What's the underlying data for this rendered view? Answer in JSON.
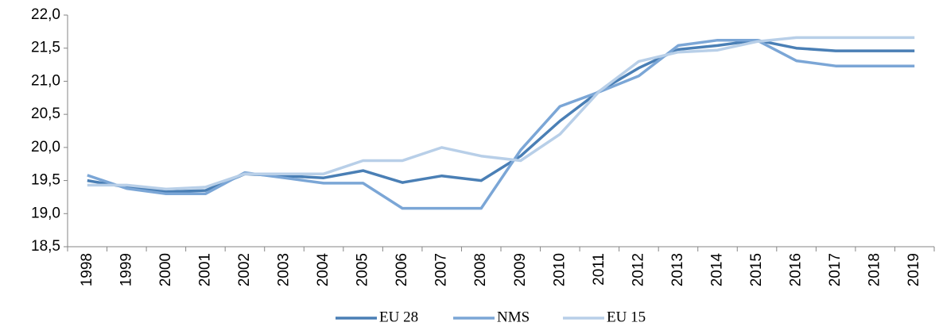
{
  "chart_data": {
    "type": "line",
    "categories": [
      "1998",
      "1999",
      "2000",
      "2001",
      "2002",
      "2003",
      "2004",
      "2005",
      "2006",
      "2007",
      "2008",
      "2009",
      "2010",
      "2011",
      "2012",
      "2013",
      "2014",
      "2015",
      "2016",
      "2017",
      "2018",
      "2019"
    ],
    "series": [
      {
        "name": "EU 28",
        "color": "#4a7fb5",
        "values": [
          19.5,
          19.4,
          19.33,
          19.35,
          19.6,
          19.57,
          19.54,
          19.65,
          19.47,
          19.57,
          19.5,
          19.87,
          20.4,
          20.85,
          21.2,
          21.48,
          21.54,
          21.62,
          21.5,
          21.46,
          21.46,
          21.46
        ]
      },
      {
        "name": "NMS",
        "color": "#7ba6d6",
        "values": [
          19.58,
          19.38,
          19.3,
          19.3,
          19.62,
          19.54,
          19.46,
          19.46,
          19.08,
          19.08,
          19.08,
          19.96,
          20.62,
          20.84,
          21.08,
          21.54,
          21.62,
          21.62,
          21.31,
          21.23,
          21.23,
          21.23
        ]
      },
      {
        "name": "EU 15",
        "color": "#b8cfe8",
        "values": [
          19.43,
          19.43,
          19.37,
          19.4,
          19.6,
          19.6,
          19.6,
          19.8,
          19.8,
          20.0,
          19.87,
          19.8,
          20.2,
          20.85,
          21.3,
          21.44,
          21.47,
          21.6,
          21.66,
          21.66,
          21.66,
          21.66
        ]
      }
    ],
    "ylim": [
      18.5,
      22.0
    ],
    "yticks": [
      {
        "value": 18.5,
        "label": "18,5"
      },
      {
        "value": 19,
        "label": "19,0"
      },
      {
        "value": 19.5,
        "label": "19,5"
      },
      {
        "value": 20,
        "label": "20,0"
      },
      {
        "value": 20.5,
        "label": "20,5"
      },
      {
        "value": 21,
        "label": "21,0"
      },
      {
        "value": 21.5,
        "label": "21,5"
      },
      {
        "value": 22,
        "label": "22,0"
      }
    ],
    "grid": false,
    "legend": "bottom"
  }
}
